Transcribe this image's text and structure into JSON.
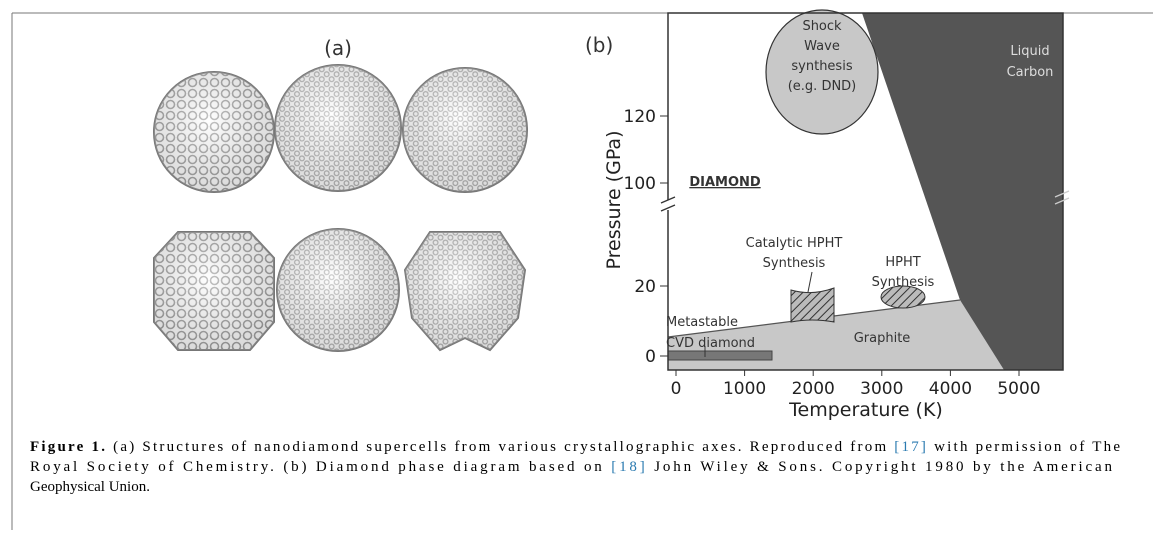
{
  "panel_a": {
    "label": "(a)"
  },
  "panel_b": {
    "label": "(b)",
    "x_label": "Temperature (K)",
    "y_label": "Pressure (GPa)",
    "x_ticks": [
      0,
      1000,
      2000,
      3000,
      4000,
      5000
    ],
    "y_ticks_lower": [
      0,
      20
    ],
    "y_ticks_upper": [
      100,
      120
    ],
    "regions": {
      "shock": [
        "Shock",
        "Wave",
        "synthesis",
        "(e.g. DND)"
      ],
      "liquid": [
        "Liquid",
        "Carbon"
      ],
      "diamond": "DIAMOND",
      "catalytic": [
        "Catalytic HPHT",
        "Synthesis"
      ],
      "hpht": [
        "HPHT",
        "Synthesis"
      ],
      "cvd": [
        "Metastable",
        "CVD diamond"
      ],
      "graphite": "Graphite"
    }
  },
  "caption": {
    "lines": [
      [
        "Figure 1.",
        " (a) Structures of nanodiamond supercells from various crystallographic axes. Reproduced from ",
        "[17]",
        " with permission of The"
      ],
      [
        "Royal Society of Chemistry. (b) Diamond phase diagram based on ",
        "[18]",
        " John Wiley & Sons. Copyright 1980 by the American"
      ],
      [
        "Geophysical Union."
      ]
    ]
  }
}
